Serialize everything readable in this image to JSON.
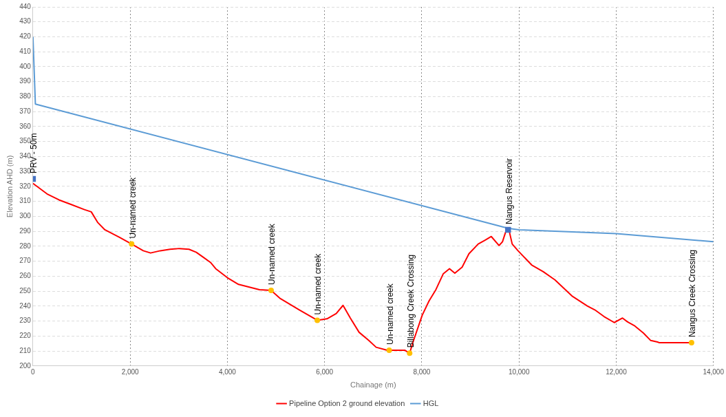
{
  "chart_data": {
    "type": "line",
    "xlabel": "Chainage (m)",
    "ylabel": "Elevation AHD (m)",
    "xlim": [
      0,
      14000
    ],
    "xticks": [
      0,
      {
        "value": 2000,
        "label": "2,000"
      },
      {
        "value": 4000,
        "label": "4,000"
      },
      {
        "value": 6000,
        "label": "6,000"
      },
      {
        "value": 8000,
        "label": "8,000"
      },
      {
        "value": 10000,
        "label": "10,000"
      },
      {
        "value": 12000,
        "label": "12,000"
      },
      {
        "value": 14000,
        "label": "14,000"
      }
    ],
    "ylim": [
      200,
      440
    ],
    "yticks": [
      200,
      210,
      220,
      230,
      240,
      250,
      260,
      270,
      280,
      290,
      300,
      310,
      320,
      330,
      340,
      350,
      360,
      370,
      380,
      390,
      400,
      410,
      420,
      430,
      440
    ],
    "grid": true,
    "legend": "bottom",
    "marker": "none",
    "line_style": "solid",
    "series": [
      {
        "name": "Pipeline Option 2 ground elevation",
        "color": "#ff0000",
        "x": [
          0,
          290,
          535,
          780,
          1060,
          1200,
          1330,
          1480,
          1780,
          2030,
          2270,
          2420,
          2620,
          2820,
          3010,
          3210,
          3360,
          3510,
          3660,
          3760,
          4000,
          4230,
          4660,
          4900,
          5090,
          5480,
          5850,
          6050,
          6240,
          6380,
          6530,
          6710,
          6910,
          7060,
          7290,
          7490,
          7650,
          7750,
          7820,
          8010,
          8150,
          8290,
          8440,
          8570,
          8680,
          8830,
          8970,
          9160,
          9300,
          9430,
          9590,
          9660,
          9730,
          9800,
          9860,
          9980,
          10260,
          10500,
          10740,
          11100,
          11410,
          11560,
          11750,
          11960,
          12130,
          12230,
          12370,
          12560,
          12710,
          12850,
          12890,
          13570
        ],
        "values": [
          322,
          315,
          311,
          308,
          304.5,
          303,
          296,
          291,
          286,
          281.5,
          277,
          275.5,
          277,
          278,
          278.5,
          278,
          276,
          272.5,
          269,
          265,
          259,
          254.5,
          251,
          250.5,
          245,
          237.5,
          230.5,
          231.5,
          235,
          240.5,
          232,
          222.5,
          217,
          212.5,
          210.5,
          210.5,
          210.5,
          208.5,
          216,
          234,
          243.5,
          251,
          261.5,
          265,
          262,
          266,
          275,
          281.5,
          284,
          286.5,
          280.5,
          283,
          290,
          290,
          281.5,
          277,
          267.5,
          263,
          257.5,
          246.5,
          240,
          237.5,
          233,
          229,
          232,
          229.5,
          227,
          222,
          217,
          216,
          215.5,
          215.5
        ]
      },
      {
        "name": "HGL",
        "color": "#5b9bd5",
        "x": [
          0,
          50,
          9775,
          10000,
          12000,
          14000
        ],
        "values": [
          420,
          375,
          292,
          291,
          288.5,
          283
        ]
      },
      {
        "type": "scatter",
        "marker": "square",
        "color": "#4472c4",
        "x": [
          0,
          9775
        ],
        "values": [
          325,
          291
        ]
      },
      {
        "type": "scatter",
        "marker": "circle",
        "color": "#ffc000",
        "x": [
          2030,
          4900,
          5850,
          7330,
          7750,
          13550
        ],
        "values": [
          281.5,
          250.5,
          230.5,
          210.5,
          208.5,
          215.5
        ]
      }
    ],
    "annotations": [
      {
        "text": "PRV - 50m",
        "x": 0,
        "y": 325
      },
      {
        "text": "Un-named creek",
        "x": 2030,
        "y": 281.5
      },
      {
        "text": "Un-named creek",
        "x": 4900,
        "y": 250.5
      },
      {
        "text": "Un-named creek",
        "x": 5850,
        "y": 230.5
      },
      {
        "text": "Un-named creek",
        "x": 7330,
        "y": 210.5
      },
      {
        "text": "Billabong Creek Crossing",
        "x": 7750,
        "y": 208.5
      },
      {
        "text": "Nangus Reservoir",
        "x": 9775,
        "y": 291
      },
      {
        "text": "Nangus Creek Crossing",
        "x": 13550,
        "y": 215.5
      }
    ]
  }
}
